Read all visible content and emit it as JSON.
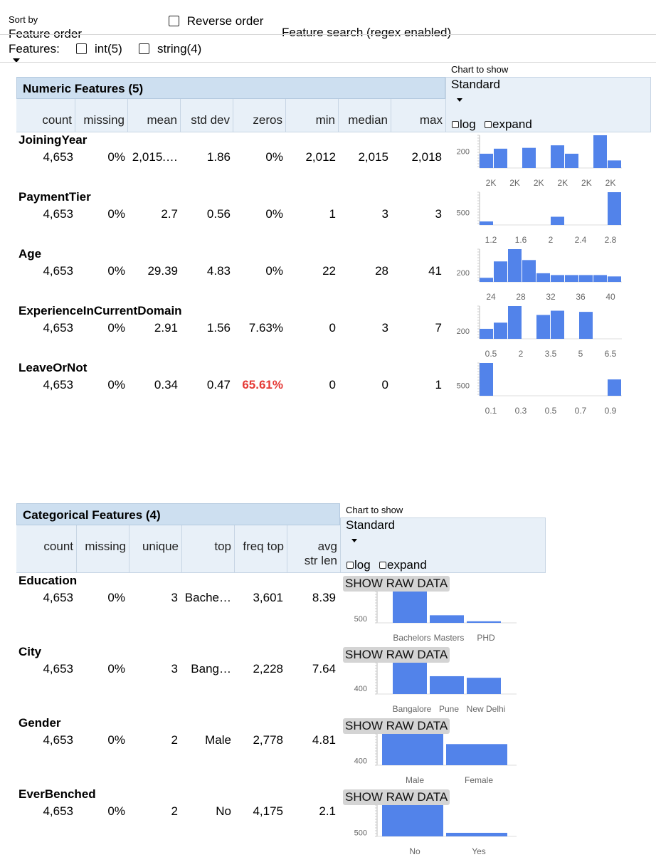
{
  "controls": {
    "sort_by_label": "Sort by",
    "sort_by_value": "Feature order",
    "reverse_label": "Reverse order",
    "search_label": "Feature search (regex enabled)",
    "features_label": "Features:",
    "filter_int": "int(5)",
    "filter_string": "string(4)"
  },
  "numeric": {
    "title": "Numeric Features (5)",
    "columns": [
      "count",
      "missing",
      "mean",
      "std dev",
      "zeros",
      "min",
      "median",
      "max"
    ],
    "chart_to_show_label": "Chart to show",
    "chart_to_show_value": "Standard",
    "log_label": "log",
    "expand_label": "expand",
    "features": [
      {
        "name": "JoiningYear",
        "values": [
          "4,653",
          "0%",
          "2,015.…",
          "1.86",
          "0%",
          "2,012",
          "2,015",
          "2,018"
        ],
        "zeros_highlight": false
      },
      {
        "name": "PaymentTier",
        "values": [
          "4,653",
          "0%",
          "2.7",
          "0.56",
          "0%",
          "1",
          "3",
          "3"
        ],
        "zeros_highlight": false
      },
      {
        "name": "Age",
        "values": [
          "4,653",
          "0%",
          "29.39",
          "4.83",
          "0%",
          "22",
          "28",
          "41"
        ],
        "zeros_highlight": false
      },
      {
        "name": "ExperienceInCurrentDomain",
        "values": [
          "4,653",
          "0%",
          "2.91",
          "1.56",
          "7.63%",
          "0",
          "3",
          "7"
        ],
        "zeros_highlight": false
      },
      {
        "name": "LeaveOrNot",
        "values": [
          "4,653",
          "0%",
          "0.34",
          "0.47",
          "65.61%",
          "0",
          "0",
          "1"
        ],
        "zeros_highlight": true
      }
    ]
  },
  "categorical": {
    "title": "Categorical Features (4)",
    "columns": [
      "count",
      "missing",
      "unique",
      "top",
      "freq top",
      "avg str len"
    ],
    "chart_to_show_label": "Chart to show",
    "chart_to_show_value": "Standard",
    "log_label": "log",
    "expand_label": "expand",
    "show_raw_label": "SHOW RAW DATA",
    "features": [
      {
        "name": "Education",
        "values": [
          "4,653",
          "0%",
          "3",
          "Bache…",
          "3,601",
          "8.39"
        ]
      },
      {
        "name": "City",
        "values": [
          "4,653",
          "0%",
          "3",
          "Bang…",
          "2,228",
          "7.64"
        ]
      },
      {
        "name": "Gender",
        "values": [
          "4,653",
          "0%",
          "2",
          "Male",
          "2,778",
          "4.81"
        ]
      },
      {
        "name": "EverBenched",
        "values": [
          "4,653",
          "0%",
          "2",
          "No",
          "4,175",
          "2.1"
        ]
      }
    ]
  },
  "colors": {
    "bar": "#5283ea",
    "header_bg": "#e8f0f8",
    "title_bg": "#cddff0",
    "highlight": "#e53935"
  },
  "chart_data": [
    {
      "type": "bar",
      "feature": "JoiningYear",
      "y_tick": "200",
      "ytick_value": 200,
      "xticks": [
        "2K",
        "2K",
        "2K",
        "2K",
        "2K",
        "2K"
      ],
      "values": [
        170,
        230,
        0,
        240,
        0,
        270,
        170,
        0,
        390,
        90
      ]
    },
    {
      "type": "bar",
      "feature": "PaymentTier",
      "y_tick": "500",
      "ytick_value": 500,
      "xticks": [
        "1.2",
        "1.6",
        "2",
        "2.4",
        "2.8"
      ],
      "values": [
        140,
        0,
        0,
        0,
        0,
        330,
        0,
        0,
        0,
        1320
      ]
    },
    {
      "type": "bar",
      "feature": "Age",
      "y_tick": "200",
      "ytick_value": 200,
      "xticks": [
        "24",
        "28",
        "32",
        "36",
        "40"
      ],
      "values": [
        90,
        450,
        720,
        480,
        190,
        150,
        150,
        150,
        150,
        120
      ]
    },
    {
      "type": "bar",
      "feature": "ExperienceInCurrentDomain",
      "y_tick": "200",
      "ytick_value": 200,
      "xticks": [
        "0.5",
        "2",
        "3.5",
        "5",
        "6.5"
      ],
      "values": [
        260,
        420,
        850,
        0,
        620,
        730,
        0,
        700,
        0,
        0
      ]
    },
    {
      "type": "bar",
      "feature": "LeaveOrNot",
      "y_tick": "500",
      "ytick_value": 500,
      "xticks": [
        "0.1",
        "0.3",
        "0.5",
        "0.7",
        "0.9"
      ],
      "values": [
        1600,
        0,
        0,
        0,
        0,
        0,
        0,
        0,
        0,
        800
      ]
    },
    {
      "type": "bar",
      "feature": "Education",
      "y_tick": "500",
      "ytick_value": 500,
      "categories": [
        "Bachelors",
        "Masters",
        "PHD"
      ],
      "values": [
        3601,
        872,
        180
      ]
    },
    {
      "type": "bar",
      "feature": "City",
      "y_tick": "400",
      "ytick_value": 400,
      "categories": [
        "Bangalore",
        "Pune",
        "New Delhi"
      ],
      "values": [
        2228,
        1268,
        1157
      ]
    },
    {
      "type": "bar",
      "feature": "Gender",
      "y_tick": "400",
      "ytick_value": 400,
      "categories": [
        "Male",
        "Female"
      ],
      "values": [
        2778,
        1875
      ]
    },
    {
      "type": "bar",
      "feature": "EverBenched",
      "y_tick": "500",
      "ytick_value": 500,
      "categories": [
        "No",
        "Yes"
      ],
      "values": [
        4175,
        478
      ]
    }
  ]
}
